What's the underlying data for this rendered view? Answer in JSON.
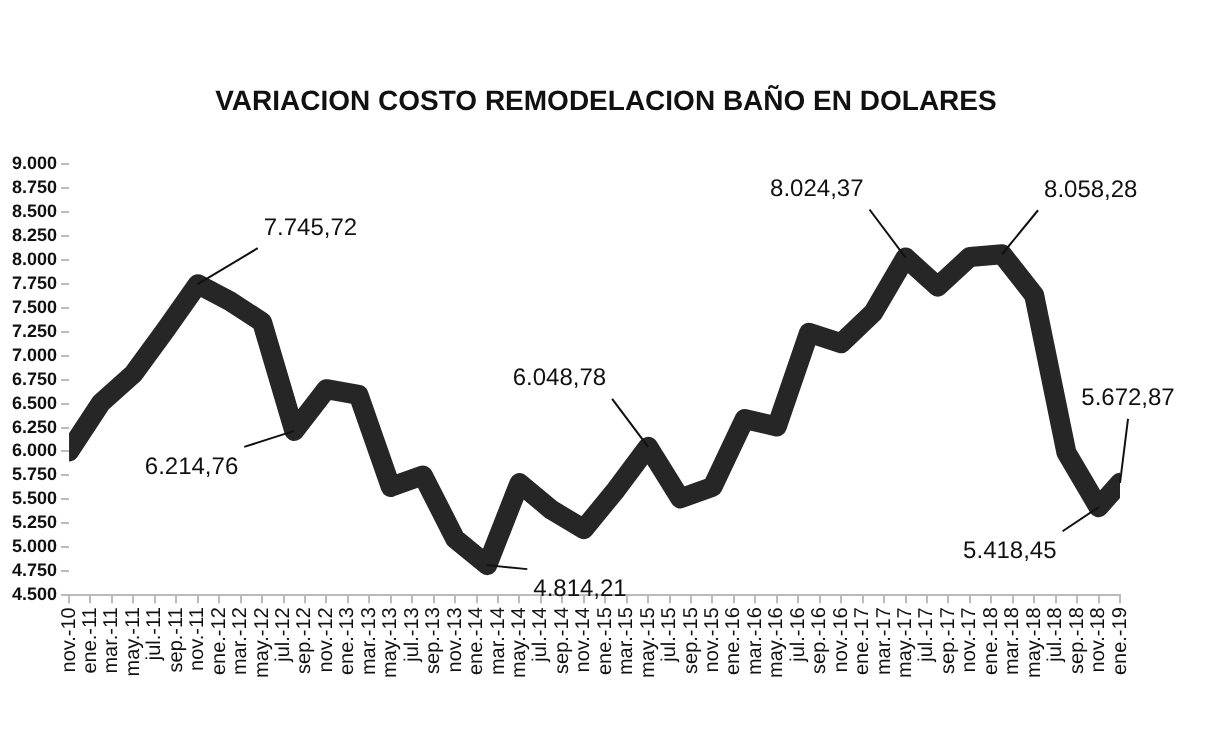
{
  "chart_data": {
    "type": "line",
    "title": "VARIACION COSTO REMODELACION BAÑO EN DOLARES",
    "x": [
      "2010-11",
      "2011-02",
      "2011-05",
      "2011-08",
      "2011-11",
      "2012-02",
      "2012-05",
      "2012-08",
      "2012-11",
      "2013-02",
      "2013-05",
      "2013-08",
      "2013-11",
      "2014-02",
      "2014-05",
      "2014-08",
      "2014-11",
      "2015-02",
      "2015-05",
      "2015-08",
      "2015-11",
      "2016-02",
      "2016-05",
      "2016-08",
      "2016-11",
      "2017-02",
      "2017-05",
      "2017-08",
      "2017-11",
      "2018-02",
      "2018-05",
      "2018-08",
      "2018-11",
      "2019-01"
    ],
    "values": [
      6000,
      6510,
      6810,
      7270,
      7745.72,
      7570,
      7350,
      6214.76,
      6650,
      6590,
      5630,
      5750,
      5090,
      4814.21,
      5670,
      5390,
      5190,
      5600,
      6048.78,
      5510,
      5630,
      6340,
      6260,
      7240,
      7130,
      7450,
      8024.37,
      7720,
      8030,
      8058.28,
      7630,
      5990,
      5418.45,
      5672.87
    ],
    "value_labels": [
      null,
      null,
      null,
      null,
      "7.745,72",
      null,
      null,
      "6.214,76",
      null,
      null,
      null,
      null,
      null,
      "4.814,21",
      null,
      null,
      null,
      null,
      "6.048,78",
      null,
      null,
      null,
      null,
      null,
      null,
      null,
      "8.024,37",
      null,
      null,
      "8.058,28",
      null,
      null,
      "5.418,45",
      "5.672,87"
    ],
    "color": "#262626",
    "xlim": [
      "2010-11",
      "2019-01"
    ],
    "xticks": [
      {
        "value": "2010-11",
        "label": "nov.-10"
      },
      {
        "value": "2011-01",
        "label": "ene.-11"
      },
      {
        "value": "2011-03",
        "label": "mar.-11"
      },
      {
        "value": "2011-05",
        "label": "may.-11"
      },
      {
        "value": "2011-07",
        "label": "jul.-11"
      },
      {
        "value": "2011-09",
        "label": "sep.-11"
      },
      {
        "value": "2011-11",
        "label": "nov.-11"
      },
      {
        "value": "2012-01",
        "label": "ene.-12"
      },
      {
        "value": "2012-03",
        "label": "mar.-12"
      },
      {
        "value": "2012-05",
        "label": "may.-12"
      },
      {
        "value": "2012-07",
        "label": "jul.-12"
      },
      {
        "value": "2012-09",
        "label": "sep.-12"
      },
      {
        "value": "2012-11",
        "label": "nov.-12"
      },
      {
        "value": "2013-01",
        "label": "ene.-13"
      },
      {
        "value": "2013-03",
        "label": "mar.-13"
      },
      {
        "value": "2013-05",
        "label": "may.-13"
      },
      {
        "value": "2013-07",
        "label": "jul.-13"
      },
      {
        "value": "2013-09",
        "label": "sep.-13"
      },
      {
        "value": "2013-11",
        "label": "nov.-13"
      },
      {
        "value": "2014-01",
        "label": "ene.-14"
      },
      {
        "value": "2014-03",
        "label": "mar.-14"
      },
      {
        "value": "2014-05",
        "label": "may.-14"
      },
      {
        "value": "2014-07",
        "label": "jul.-14"
      },
      {
        "value": "2014-09",
        "label": "sep.-14"
      },
      {
        "value": "2014-11",
        "label": "nov.-14"
      },
      {
        "value": "2015-01",
        "label": "ene.-15"
      },
      {
        "value": "2015-03",
        "label": "mar.-15"
      },
      {
        "value": "2015-05",
        "label": "may.-15"
      },
      {
        "value": "2015-07",
        "label": "jul.-15"
      },
      {
        "value": "2015-09",
        "label": "sep.-15"
      },
      {
        "value": "2015-11",
        "label": "nov.-15"
      },
      {
        "value": "2016-01",
        "label": "ene.-16"
      },
      {
        "value": "2016-03",
        "label": "mar.-16"
      },
      {
        "value": "2016-05",
        "label": "may.-16"
      },
      {
        "value": "2016-07",
        "label": "jul.-16"
      },
      {
        "value": "2016-09",
        "label": "sep.-16"
      },
      {
        "value": "2016-11",
        "label": "nov.-16"
      },
      {
        "value": "2017-01",
        "label": "ene.-17"
      },
      {
        "value": "2017-03",
        "label": "mar.-17"
      },
      {
        "value": "2017-05",
        "label": "may.-17"
      },
      {
        "value": "2017-07",
        "label": "jul.-17"
      },
      {
        "value": "2017-09",
        "label": "sep.-17"
      },
      {
        "value": "2017-11",
        "label": "nov.-17"
      },
      {
        "value": "2018-01",
        "label": "ene.-18"
      },
      {
        "value": "2018-03",
        "label": "mar.-18"
      },
      {
        "value": "2018-05",
        "label": "may.-18"
      },
      {
        "value": "2018-07",
        "label": "jul.-18"
      },
      {
        "value": "2018-09",
        "label": "sep.-18"
      },
      {
        "value": "2018-11",
        "label": "nov.-18"
      },
      {
        "value": "2019-01",
        "label": "ene.-19"
      }
    ],
    "ylim": [
      4500,
      9000
    ],
    "yticks": [
      {
        "value": 4500,
        "label": "4.500"
      },
      {
        "value": 4750,
        "label": "4.750"
      },
      {
        "value": 5000,
        "label": "5.000"
      },
      {
        "value": 5250,
        "label": "5.250"
      },
      {
        "value": 5500,
        "label": "5.500"
      },
      {
        "value": 5750,
        "label": "5.750"
      },
      {
        "value": 6000,
        "label": "6.000"
      },
      {
        "value": 6250,
        "label": "6.250"
      },
      {
        "value": 6500,
        "label": "6.500"
      },
      {
        "value": 6750,
        "label": "6.750"
      },
      {
        "value": 7000,
        "label": "7.000"
      },
      {
        "value": 7250,
        "label": "7.250"
      },
      {
        "value": 7500,
        "label": "7.500"
      },
      {
        "value": 7750,
        "label": "7.750"
      },
      {
        "value": 8000,
        "label": "8.000"
      },
      {
        "value": 8250,
        "label": "8.250"
      },
      {
        "value": 8500,
        "label": "8.500"
      },
      {
        "value": 8750,
        "label": "8.750"
      },
      {
        "value": 9000,
        "label": "9.000"
      }
    ],
    "grid": false,
    "legend": false
  }
}
